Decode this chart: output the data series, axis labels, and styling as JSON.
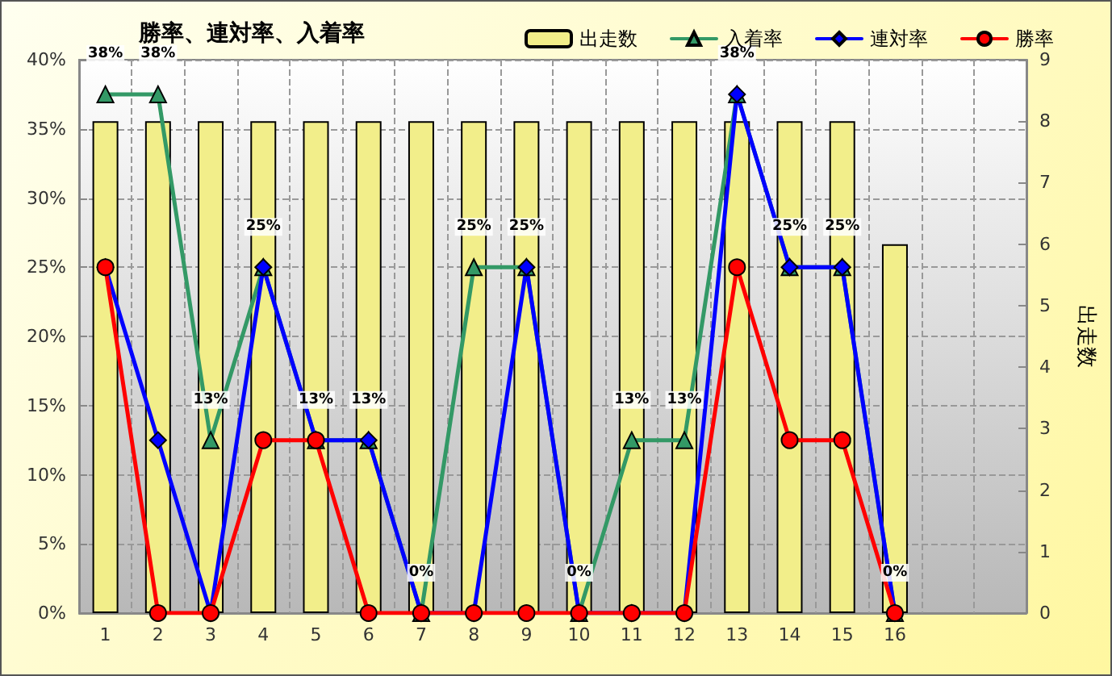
{
  "chart_data": {
    "type": "line",
    "title": "勝率、連対率、入着率",
    "y2label": "出走数",
    "categories": [
      "1",
      "2",
      "3",
      "4",
      "5",
      "6",
      "7",
      "8",
      "9",
      "10",
      "11",
      "12",
      "13",
      "14",
      "15",
      "16",
      null,
      null
    ],
    "ylim": [
      0,
      40
    ],
    "yticks": [
      {
        "value": 0,
        "label": "0%"
      },
      {
        "value": 5,
        "label": "5%"
      },
      {
        "value": 10,
        "label": "10%"
      },
      {
        "value": 15,
        "label": "15%"
      },
      {
        "value": 20,
        "label": "20%"
      },
      {
        "value": 25,
        "label": "25%"
      },
      {
        "value": 30,
        "label": "30%"
      },
      {
        "value": 35,
        "label": "35%"
      },
      {
        "value": 40,
        "label": "40%"
      }
    ],
    "y2lim": [
      0,
      9
    ],
    "y2ticks": [
      0,
      1,
      2,
      3,
      4,
      5,
      6,
      7,
      8,
      9
    ],
    "grid": true,
    "legend": "top right",
    "series": [
      {
        "name": "出走数",
        "type": "bar",
        "axis": "y2",
        "color": "#f2ee8a",
        "values": [
          8,
          8,
          8,
          8,
          8,
          8,
          8,
          8,
          8,
          8,
          8,
          8,
          8,
          8,
          8,
          6,
          null,
          null
        ]
      },
      {
        "name": "入着率",
        "color": "#339966",
        "marker": "triangle",
        "values": [
          37.5,
          37.5,
          12.5,
          25,
          12.5,
          12.5,
          0,
          25,
          25,
          0,
          12.5,
          12.5,
          37.5,
          25,
          25,
          0,
          null,
          null
        ],
        "value_labels": [
          "38%",
          "38%",
          "13%",
          "25%",
          "13%",
          "13%",
          "0%",
          "25%",
          "25%",
          "0%",
          "13%",
          "13%",
          "38%",
          "25%",
          "25%",
          "0%",
          null,
          null
        ]
      },
      {
        "name": "連対率",
        "color": "#0000ff",
        "marker": "diamond",
        "values": [
          25,
          12.5,
          0,
          25,
          12.5,
          12.5,
          0,
          0,
          25,
          0,
          0,
          0,
          37.5,
          25,
          25,
          0,
          null,
          null
        ]
      },
      {
        "name": "勝率",
        "color": "#ff0000",
        "marker": "circle",
        "values": [
          25,
          0,
          0,
          12.5,
          12.5,
          0,
          0,
          0,
          0,
          0,
          0,
          0,
          25,
          12.5,
          12.5,
          0,
          null,
          null
        ]
      }
    ]
  }
}
